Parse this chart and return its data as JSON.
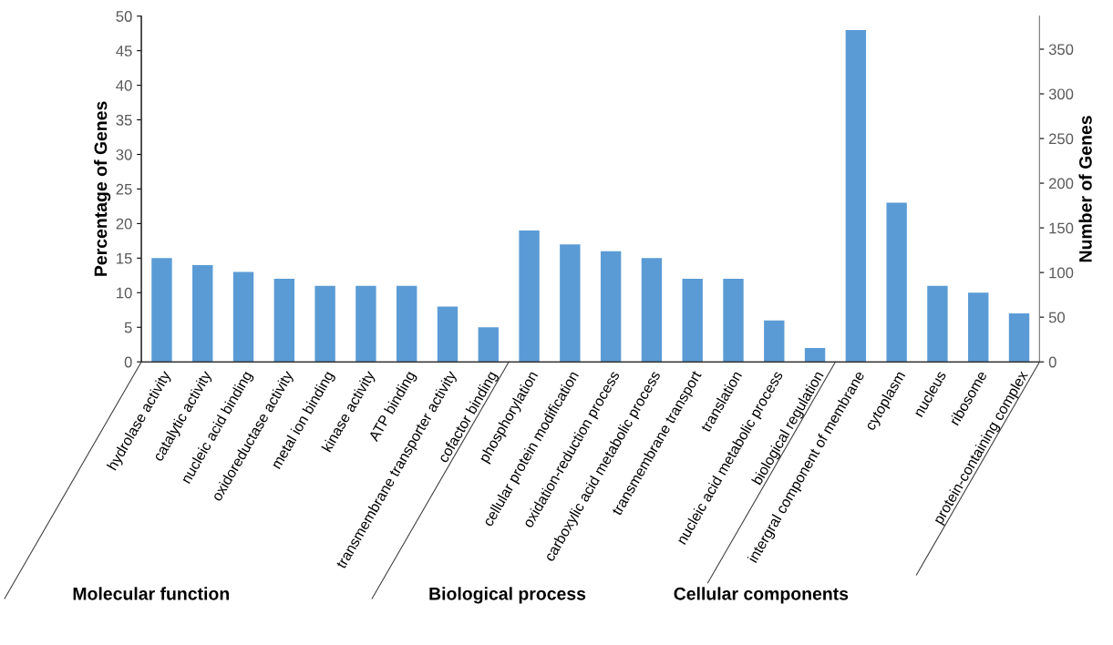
{
  "chart_data": {
    "type": "bar",
    "ylabel": "Percentage of Genes",
    "y2label": "Number of Genes",
    "categories": [
      "hydrolase activity",
      "catalytic activity",
      "nucleic acid binding",
      "oxidoreductase activity",
      "metal ion binding",
      "kinase activity",
      "ATP binding",
      "transmembrane transporter activity",
      "cofactor binding",
      "phosphorylation",
      "cellular protein modification",
      "oxidation-reduction process",
      "carboxylic acid metabolic process",
      "transmembrane transport",
      "translation",
      "nucleic acid metabolic process",
      "biological regulation",
      "intergral component of membrane",
      "cytoplasm",
      "nucleus",
      "ribosome",
      "protein-containing complex"
    ],
    "series": [
      {
        "color": "#5b9bd5",
        "values": [
          15,
          14,
          13,
          12,
          11,
          11,
          11,
          8,
          5,
          19,
          17,
          16,
          15,
          12,
          12,
          6,
          2,
          48,
          23,
          11,
          10,
          7
        ]
      }
    ],
    "ylim": [
      0,
      50
    ],
    "yticks": [
      0,
      5,
      10,
      15,
      20,
      25,
      30,
      35,
      40,
      45,
      50
    ],
    "y2lim": [
      0,
      387
    ],
    "y2ticks": [
      0,
      50,
      100,
      150,
      200,
      250,
      300,
      350
    ],
    "grid": false,
    "legend": false,
    "annotations": [
      "Molecular function",
      "Biological process",
      "Cellular components"
    ]
  }
}
